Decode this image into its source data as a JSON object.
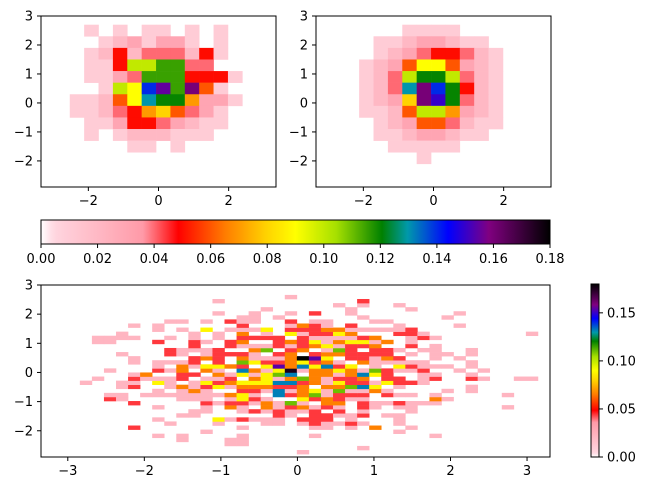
{
  "chart_data": [
    {
      "type": "heatmap",
      "name": "histogram-top-left",
      "xlim": [
        -3.35,
        3.35
      ],
      "ylim": [
        -2.9,
        3.0
      ],
      "grid": false,
      "x_ticks": [
        -2,
        0,
        2
      ],
      "y_ticks": [
        -2,
        -1,
        0,
        1,
        2,
        3
      ],
      "x_tick_labels": [
        "−2",
        "0",
        "2"
      ],
      "y_tick_labels": [
        "−2",
        "−1",
        "0",
        "1",
        "2",
        "3"
      ],
      "x_edges": [
        -3.35,
        -2.94,
        -2.53,
        -2.12,
        -1.71,
        -1.3,
        -0.89,
        -0.48,
        -0.07,
        0.34,
        0.75,
        1.16,
        1.57,
        1.98,
        2.39,
        2.8,
        3.21
      ],
      "y_edges": [
        -2.9,
        -2.5,
        -2.1,
        -1.7,
        -1.3,
        -0.9,
        -0.5,
        -0.1,
        0.3,
        0.7,
        1.1,
        1.5,
        1.9,
        2.3,
        2.7,
        3.0
      ],
      "rows_top_to_bottom": [
        [
          0,
          0,
          0,
          0,
          0,
          0,
          0,
          0,
          0,
          0,
          0,
          0,
          0,
          0,
          0,
          0
        ],
        [
          0,
          0,
          0,
          0.01,
          0,
          0.01,
          0,
          0.01,
          0.01,
          0,
          0.01,
          0,
          0.01,
          0,
          0,
          0
        ],
        [
          0,
          0,
          0,
          0,
          0.01,
          0.02,
          0.03,
          0.01,
          0.03,
          0.03,
          0.01,
          0,
          0.01,
          0,
          0,
          0
        ],
        [
          0,
          0,
          0,
          0.01,
          0.02,
          0.05,
          0.02,
          0.04,
          0.04,
          0.04,
          0.02,
          0.05,
          0.01,
          0,
          0,
          0
        ],
        [
          0,
          0,
          0,
          0.01,
          0.01,
          0.05,
          0.1,
          0.1,
          0.115,
          0.115,
          0.04,
          0.04,
          0,
          0,
          0,
          0
        ],
        [
          0,
          0,
          0,
          0.01,
          0.01,
          0.03,
          0.04,
          0.115,
          0.115,
          0.115,
          0.05,
          0.05,
          0.05,
          0.01,
          0,
          0
        ],
        [
          0,
          0,
          0,
          0,
          0.01,
          0.1,
          0.09,
          0.14,
          0.155,
          0.115,
          0.16,
          0.06,
          0.01,
          0,
          0,
          0
        ],
        [
          0,
          0,
          0.01,
          0.01,
          0.02,
          0.06,
          0.09,
          0.13,
          0.12,
          0.12,
          0.07,
          0.03,
          0.03,
          0.01,
          0,
          0
        ],
        [
          0,
          0,
          0.01,
          0.01,
          0.02,
          0.04,
          0.05,
          0.07,
          0.08,
          0.06,
          0.04,
          0.03,
          0.01,
          0,
          0,
          0
        ],
        [
          0,
          0,
          0,
          0.01,
          0.01,
          0.03,
          0.05,
          0.05,
          0.04,
          0.03,
          0.02,
          0.01,
          0.01,
          0,
          0,
          0
        ],
        [
          0,
          0,
          0,
          0.01,
          0,
          0.01,
          0.02,
          0.02,
          0.02,
          0.01,
          0.01,
          0.01,
          0,
          0,
          0,
          0
        ],
        [
          0,
          0,
          0,
          0,
          0,
          0,
          0.01,
          0.01,
          0,
          0.01,
          0,
          0,
          0,
          0,
          0,
          0
        ],
        [
          0,
          0,
          0,
          0,
          0,
          0,
          0,
          0,
          0,
          0,
          0,
          0,
          0,
          0,
          0,
          0
        ],
        [
          0,
          0,
          0,
          0,
          0,
          0,
          0,
          0,
          0,
          0,
          0,
          0,
          0,
          0,
          0,
          0
        ],
        [
          0,
          0,
          0,
          0,
          0,
          0,
          0,
          0,
          0,
          0,
          0,
          0,
          0,
          0,
          0,
          0
        ]
      ]
    },
    {
      "type": "heatmap",
      "name": "histogram-top-right",
      "xlim": [
        -3.35,
        3.35
      ],
      "ylim": [
        -2.9,
        3.0
      ],
      "grid": false,
      "x_ticks": [
        -2,
        0,
        2
      ],
      "y_ticks": [
        -2,
        -1,
        0,
        1,
        2,
        3
      ],
      "x_tick_labels": [
        "−2",
        "0",
        "2"
      ],
      "y_tick_labels": [
        "−2",
        "−1",
        "0",
        "1",
        "2",
        "3"
      ],
      "x_edges": [
        -3.35,
        -2.94,
        -2.53,
        -2.12,
        -1.71,
        -1.3,
        -0.89,
        -0.48,
        -0.07,
        0.34,
        0.75,
        1.16,
        1.57,
        1.98,
        2.39,
        2.8,
        3.21
      ],
      "y_edges": [
        -2.9,
        -2.5,
        -2.1,
        -1.7,
        -1.3,
        -0.9,
        -0.5,
        -0.1,
        0.3,
        0.7,
        1.1,
        1.5,
        1.9,
        2.3,
        2.7,
        3.0
      ],
      "rows_top_to_bottom": [
        [
          0,
          0,
          0,
          0,
          0,
          0,
          0,
          0,
          0,
          0,
          0,
          0,
          0,
          0,
          0,
          0
        ],
        [
          0,
          0,
          0,
          0,
          0,
          0,
          0.01,
          0.01,
          0.01,
          0.01,
          0,
          0,
          0,
          0,
          0,
          0
        ],
        [
          0,
          0,
          0,
          0,
          0.01,
          0.01,
          0.02,
          0.03,
          0.03,
          0.02,
          0.01,
          0.01,
          0,
          0,
          0,
          0
        ],
        [
          0,
          0,
          0,
          0,
          0.01,
          0.02,
          0.03,
          0.04,
          0.05,
          0.05,
          0.04,
          0.02,
          0.01,
          0,
          0,
          0
        ],
        [
          0,
          0,
          0,
          0.01,
          0.02,
          0.03,
          0.06,
          0.09,
          0.09,
          0.06,
          0.03,
          0.02,
          0.01,
          0,
          0,
          0
        ],
        [
          0,
          0,
          0,
          0.01,
          0.02,
          0.04,
          0.1,
          0.12,
          0.12,
          0.1,
          0.04,
          0.02,
          0.01,
          0,
          0,
          0
        ],
        [
          0,
          0,
          0,
          0.01,
          0.02,
          0.04,
          0.13,
          0.16,
          0.14,
          0.12,
          0.05,
          0.02,
          0.01,
          0,
          0,
          0
        ],
        [
          0,
          0,
          0,
          0.01,
          0.02,
          0.03,
          0.08,
          0.16,
          0.15,
          0.12,
          0.04,
          0.02,
          0.01,
          0,
          0,
          0
        ],
        [
          0,
          0,
          0,
          0.01,
          0.01,
          0.02,
          0.06,
          0.1,
          0.1,
          0.07,
          0.03,
          0.02,
          0.01,
          0,
          0,
          0
        ],
        [
          0,
          0,
          0,
          0,
          0.01,
          0.02,
          0.03,
          0.06,
          0.06,
          0.04,
          0.02,
          0.01,
          0.01,
          0,
          0,
          0
        ],
        [
          0,
          0,
          0,
          0,
          0.01,
          0.01,
          0.02,
          0.03,
          0.03,
          0.02,
          0.01,
          0.01,
          0,
          0,
          0,
          0
        ],
        [
          0,
          0,
          0,
          0,
          0,
          0.01,
          0.01,
          0.01,
          0.01,
          0.01,
          0,
          0,
          0,
          0,
          0,
          0
        ],
        [
          0,
          0,
          0,
          0,
          0,
          0,
          0,
          0.01,
          0,
          0,
          0,
          0,
          0,
          0,
          0,
          0
        ],
        [
          0,
          0,
          0,
          0,
          0,
          0,
          0,
          0,
          0,
          0,
          0,
          0,
          0,
          0,
          0,
          0
        ],
        [
          0,
          0,
          0,
          0,
          0,
          0,
          0,
          0,
          0,
          0,
          0,
          0,
          0,
          0,
          0,
          0
        ]
      ]
    },
    {
      "type": "heatmap",
      "name": "histogram-bottom",
      "xlim": [
        -3.35,
        3.3
      ],
      "ylim": [
        -2.9,
        3.0
      ],
      "grid": false,
      "x_ticks": [
        -3,
        -2,
        -1,
        0,
        1,
        2,
        3
      ],
      "y_ticks": [
        -2,
        -1,
        0,
        1,
        2,
        3
      ],
      "x_tick_labels": [
        "−3",
        "−2",
        "−1",
        "0",
        "1",
        "2",
        "3"
      ],
      "y_tick_labels": [
        "−2",
        "−1",
        "0",
        "1",
        "2",
        "3"
      ],
      "x_bins": 40,
      "y_bins": 40,
      "sampling": "dense 40x40 histogram of the same bivariate normal sample; cell values 0-0.18, concentrated near (0,0)"
    }
  ],
  "colorbar_horizontal": {
    "cmap": "gist_ncar_r-like",
    "range": [
      0,
      0.18
    ],
    "ticks": [
      0.0,
      0.02,
      0.04,
      0.06,
      0.08,
      0.1,
      0.12,
      0.14,
      0.16,
      0.18
    ],
    "tick_labels": [
      "0.00",
      "0.02",
      "0.04",
      "0.06",
      "0.08",
      "0.10",
      "0.12",
      "0.14",
      "0.16",
      "0.18"
    ]
  },
  "colorbar_vertical": {
    "range": [
      0,
      0.18
    ],
    "ticks": [
      0.0,
      0.05,
      0.1,
      0.15
    ],
    "tick_labels": [
      "0.00",
      "0.05",
      "0.10",
      "0.15"
    ]
  },
  "colormap": [
    [
      0.0,
      "#ffffff"
    ],
    [
      0.025,
      "#ffd6e0"
    ],
    [
      0.2,
      "#ff9aa8"
    ],
    [
      0.27,
      "#ff0000"
    ],
    [
      0.36,
      "#ff7a00"
    ],
    [
      0.44,
      "#ffd000"
    ],
    [
      0.5,
      "#ffff00"
    ],
    [
      0.58,
      "#a6e000"
    ],
    [
      0.67,
      "#008000"
    ],
    [
      0.72,
      "#0099aa"
    ],
    [
      0.8,
      "#0000ff"
    ],
    [
      0.88,
      "#800080"
    ],
    [
      1.0,
      "#000000"
    ]
  ]
}
